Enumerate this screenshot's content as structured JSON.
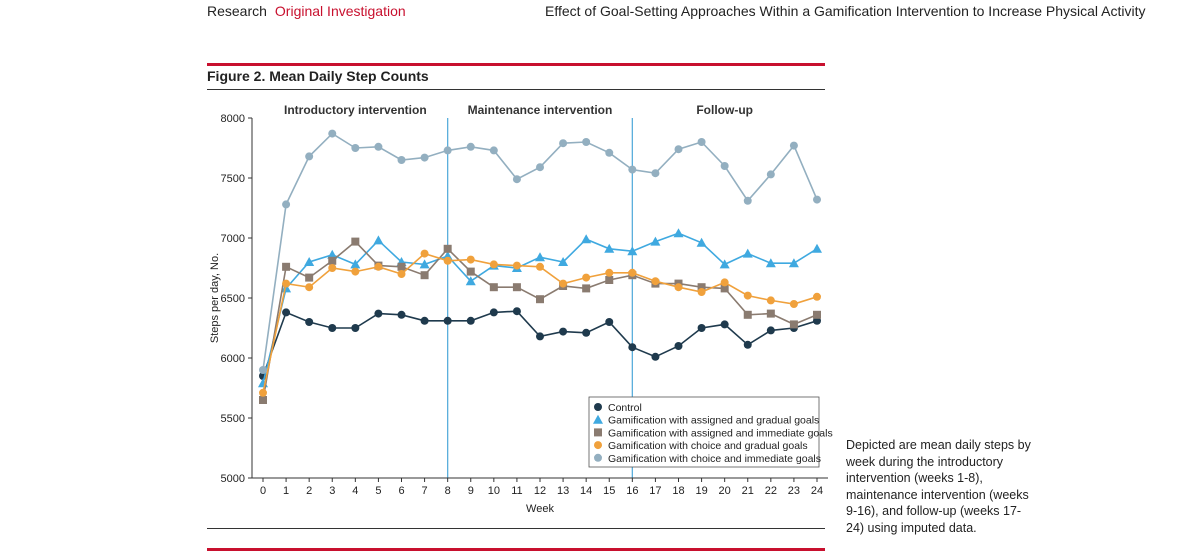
{
  "header": {
    "section": "Research",
    "subsection": "Original Investigation",
    "article_title": "Effect of Goal-Setting Approaches Within a Gamification Intervention to Increase Physical Activity"
  },
  "figure": {
    "title": "Figure 2. Mean Daily Step Counts",
    "caption": "Depicted are mean daily steps by week during the introductory intervention (weeks 1-8), maintenance intervention (weeks 9-16), and follow-up (weeks 17-24) using imputed data."
  },
  "chart_data": {
    "type": "line",
    "title": "Mean Daily Step Counts",
    "xlabel": "Week",
    "ylabel": "Steps per day, No.",
    "xlim": [
      0,
      24
    ],
    "ylim": [
      5000,
      8000
    ],
    "x": [
      0,
      1,
      2,
      3,
      4,
      5,
      6,
      7,
      8,
      9,
      10,
      11,
      12,
      13,
      14,
      15,
      16,
      17,
      18,
      19,
      20,
      21,
      22,
      23,
      24
    ],
    "y_ticks": [
      5000,
      5500,
      6000,
      6500,
      7000,
      7500,
      8000
    ],
    "phases": [
      {
        "label": "Introductory intervention",
        "start": 0,
        "end": 8
      },
      {
        "label": "Maintenance intervention",
        "start": 8,
        "end": 16
      },
      {
        "label": "Follow-up",
        "start": 16,
        "end": 24
      }
    ],
    "phase_boundaries": [
      8,
      16
    ],
    "legend_position": "bottom-right",
    "series": [
      {
        "name": "Control",
        "color": "#1f3a4d",
        "marker": "circle",
        "values": [
          5850,
          6380,
          6300,
          6250,
          6250,
          6370,
          6360,
          6310,
          6310,
          6310,
          6380,
          6390,
          6180,
          6220,
          6210,
          6300,
          6090,
          6010,
          6100,
          6250,
          6280,
          6110,
          6230,
          6250,
          6310
        ]
      },
      {
        "name": "Gamification with assigned and gradual goals",
        "color": "#3fa9e0",
        "marker": "triangle",
        "values": [
          5790,
          6580,
          6800,
          6860,
          6780,
          6980,
          6800,
          6780,
          6850,
          6640,
          6770,
          6750,
          6840,
          6800,
          6990,
          6910,
          6890,
          6970,
          7040,
          6960,
          6780,
          6870,
          6790,
          6790,
          6910
        ]
      },
      {
        "name": "Gamification with assigned and immediate goals",
        "color": "#8a7b70",
        "marker": "square",
        "values": [
          5650,
          6760,
          6670,
          6810,
          6970,
          6770,
          6760,
          6690,
          6910,
          6720,
          6590,
          6590,
          6490,
          6600,
          6580,
          6650,
          6690,
          6620,
          6620,
          6590,
          6580,
          6360,
          6370,
          6280,
          6360
        ]
      },
      {
        "name": "Gamification with choice and gradual goals",
        "color": "#f0a13c",
        "marker": "circle",
        "values": [
          5710,
          6620,
          6590,
          6750,
          6720,
          6760,
          6700,
          6870,
          6810,
          6820,
          6780,
          6770,
          6760,
          6620,
          6670,
          6710,
          6710,
          6640,
          6590,
          6550,
          6630,
          6520,
          6480,
          6450,
          6510
        ]
      },
      {
        "name": "Gamification with choice and immediate goals",
        "color": "#93afc0",
        "marker": "circle",
        "values": [
          5900,
          7280,
          7680,
          7870,
          7750,
          7760,
          7650,
          7670,
          7730,
          7760,
          7730,
          7490,
          7590,
          7790,
          7800,
          7710,
          7570,
          7540,
          7740,
          7800,
          7600,
          7310,
          7530,
          7770,
          7320
        ]
      }
    ]
  }
}
